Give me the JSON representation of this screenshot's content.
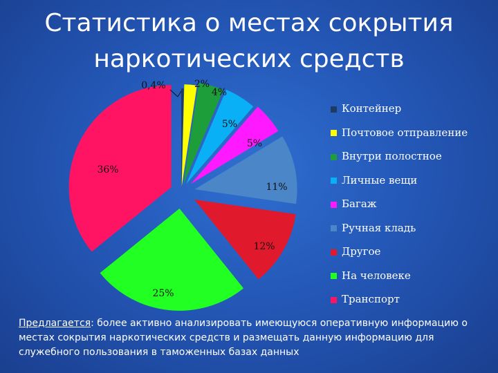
{
  "title_line1": "Статистика о местах сокрытия",
  "title_line2": "наркотических средств",
  "chart_data": {
    "type": "pie",
    "categories": [
      "Контейнер",
      "Почтовое отправление",
      "Внутри полостное",
      "Личные вещи",
      "Багаж",
      "Ручная кладь",
      "Другое",
      "На человеке",
      "Транспорт"
    ],
    "values": [
      0.4,
      2,
      4,
      5,
      5,
      11,
      12,
      25,
      36
    ],
    "labels": [
      "0,4%",
      "2%",
      "4%",
      "5%",
      "5%",
      "11%",
      "12%",
      "25%",
      "36%"
    ],
    "colors": [
      "#1f3a63",
      "#ffff00",
      "#1e9e3a",
      "#0ab0f5",
      "#ff19ff",
      "#4a86c8",
      "#e01a2c",
      "#22ff22",
      "#ff1464"
    ],
    "legend_position": "right"
  },
  "footer": {
    "lead": "Предлагается",
    "text": ": более активно анализировать имеющуюся оперативную информацию о местах сокрытия наркотических средств и размещать данную информацию для служебного пользования в таможенных базах данных"
  }
}
